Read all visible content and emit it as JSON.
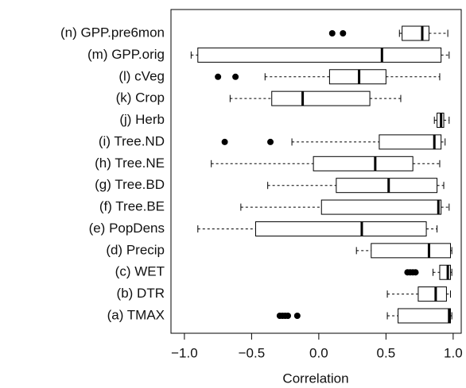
{
  "chart_data": {
    "type": "boxplot",
    "orientation": "horizontal",
    "x_label": "Correlation",
    "categories": [
      "(n) GPP.pre6mon",
      "(m) GPP.orig",
      "(l) cVeg",
      "(k) Crop",
      "(j) Herb",
      "(i) Tree.ND",
      "(h) Tree.NE",
      "(g) Tree.BD",
      "(f) Tree.BE",
      "(e) PopDens",
      "(d) Precip",
      "(c) WET",
      "(b) DTR",
      "(a) TMAX"
    ],
    "boxes": [
      {
        "low": 0.6,
        "q1": 0.62,
        "median": 0.77,
        "q3": 0.82,
        "high": 0.96,
        "outliers": [
          0.1,
          0.18
        ]
      },
      {
        "low": -0.95,
        "q1": -0.9,
        "median": 0.47,
        "q3": 0.91,
        "high": 0.97,
        "outliers": []
      },
      {
        "low": -0.4,
        "q1": 0.08,
        "median": 0.3,
        "q3": 0.5,
        "high": 0.9,
        "outliers": [
          -0.75,
          -0.62
        ]
      },
      {
        "low": -0.66,
        "q1": -0.35,
        "median": -0.12,
        "q3": 0.38,
        "high": 0.61,
        "outliers": []
      },
      {
        "low": 0.86,
        "q1": 0.88,
        "median": 0.91,
        "q3": 0.93,
        "high": 0.97,
        "outliers": []
      },
      {
        "low": -0.2,
        "q1": 0.45,
        "median": 0.86,
        "q3": 0.91,
        "high": 0.94,
        "outliers": [
          -0.7,
          -0.36
        ]
      },
      {
        "low": -0.8,
        "q1": -0.04,
        "median": 0.42,
        "q3": 0.7,
        "high": 0.9,
        "outliers": []
      },
      {
        "low": -0.38,
        "q1": 0.13,
        "median": 0.52,
        "q3": 0.88,
        "high": 0.93,
        "outliers": []
      },
      {
        "low": -0.58,
        "q1": 0.02,
        "median": 0.89,
        "q3": 0.91,
        "high": 0.97,
        "outliers": []
      },
      {
        "low": -0.9,
        "q1": -0.47,
        "median": 0.32,
        "q3": 0.8,
        "high": 0.88,
        "outliers": []
      },
      {
        "low": 0.28,
        "q1": 0.39,
        "median": 0.82,
        "q3": 0.98,
        "high": 0.99,
        "outliers": []
      },
      {
        "low": 0.85,
        "q1": 0.9,
        "median": 0.96,
        "q3": 0.98,
        "high": 0.99,
        "outliers": [
          0.66,
          0.68,
          0.7,
          0.72
        ]
      },
      {
        "low": 0.51,
        "q1": 0.74,
        "median": 0.87,
        "q3": 0.95,
        "high": 0.98,
        "outliers": []
      },
      {
        "low": 0.51,
        "q1": 0.59,
        "median": 0.97,
        "q3": 0.98,
        "high": 0.99,
        "outliers": [
          -0.29,
          -0.27,
          -0.25,
          -0.23,
          -0.16
        ]
      }
    ],
    "xlim": [
      -1.1,
      1.06
    ],
    "xticks": [
      {
        "value": -1,
        "label": "−1.0"
      },
      {
        "value": -0.5,
        "label": "−0.5"
      },
      {
        "value": 0,
        "label": "0.0"
      },
      0.5,
      {
        "value": 1,
        "label": "1.0"
      }
    ],
    "color": "#000000"
  }
}
